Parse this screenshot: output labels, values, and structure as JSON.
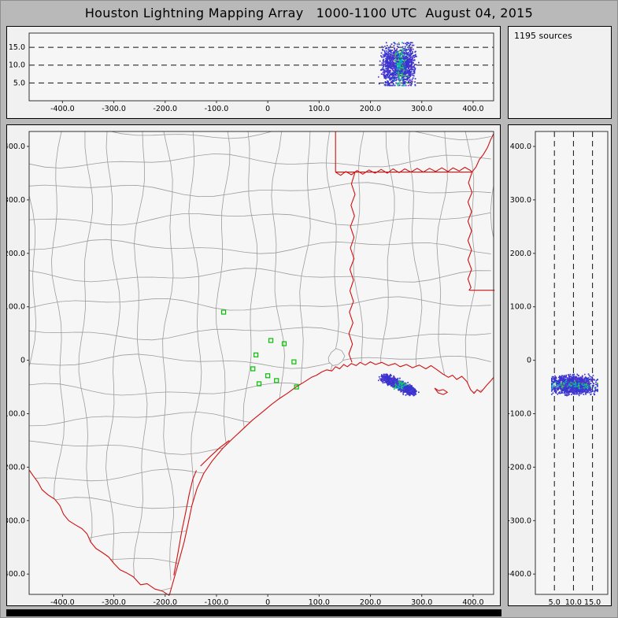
{
  "header": {
    "title": "Houston Lightning Mapping Array   1000-1100 UTC  August 04, 2015"
  },
  "info_panel": {
    "sources": "1195 sources"
  },
  "colors": {
    "frame_bg": "#b9b9b9",
    "panel_bg": "#f1f1f1",
    "plot_bg": "#f6f6f6",
    "frame_line": "#333333",
    "grid_dash": "#111111",
    "county_line": "#9c9c9c",
    "state_line": "#d01010",
    "station": "#00c000",
    "point_blue": "#3535cf",
    "point_purple": "#6a35cf",
    "point_cyan": "#00b4c8",
    "point_green": "#2fbf4f"
  },
  "chart_data": {
    "type": "scatter",
    "title": "Houston Lightning Mapping Array",
    "time_window": "1000-1100 UTC  August 04, 2015",
    "source_count": 1195,
    "linked_views": [
      "altitude_vs_east_west",
      "plan_view_map",
      "altitude_vs_north_south"
    ],
    "axes": {
      "ew_km": {
        "range": [
          -465,
          440
        ],
        "ticks": [
          -400,
          -300,
          -200,
          -100,
          0,
          100,
          200,
          300,
          400
        ],
        "tick_labels": [
          "-400.0",
          "-300.0",
          "-200.0",
          "-100.0",
          "0",
          "100.0",
          "200.0",
          "300.0",
          "400.0"
        ]
      },
      "ns_km": {
        "range": [
          -438,
          428
        ],
        "ticks": [
          400,
          300,
          200,
          100,
          0,
          -100,
          -200,
          -300,
          -400
        ],
        "tick_labels": [
          "400.0",
          "300.0",
          "200.0",
          "100.0",
          "0",
          "-100.0",
          "-200.0",
          "-300.0",
          "-400.0"
        ]
      },
      "alt_km": {
        "range": [
          0,
          19
        ],
        "ticks": [
          5,
          10,
          15
        ],
        "tick_labels": [
          "5.0",
          "10.0",
          "15.0"
        ],
        "gridline_style": "dashed"
      }
    },
    "lightning_cluster": {
      "count": 1195,
      "description": "single storm cell offshore, southeast of Houston network",
      "ew_km_extent": [
        222,
        290
      ],
      "ns_km_extent": [
        -66,
        -26
      ],
      "alt_km_extent": [
        4.3,
        16.3
      ],
      "alt_km_mean": 10.2,
      "track": {
        "start": [
          228,
          -32
        ],
        "end": [
          283,
          -60
        ]
      },
      "spread_ew_km": 9,
      "spread_ns_km": 6,
      "alt_spread_km": 4.6
    },
    "stations": {
      "marker": "open-square",
      "positions_km": [
        [
          -86,
          90
        ],
        [
          6,
          37
        ],
        [
          32,
          31
        ],
        [
          -23,
          10
        ],
        [
          -29,
          -16
        ],
        [
          51,
          -3
        ],
        [
          0,
          -29
        ],
        [
          17,
          -38
        ],
        [
          -17,
          -44
        ],
        [
          56,
          -50
        ]
      ]
    },
    "map": {
      "coastline": [
        [
          -192,
          -440
        ],
        [
          -183,
          -410
        ],
        [
          -172,
          -372
        ],
        [
          -163,
          -340
        ],
        [
          -155,
          -305
        ],
        [
          -148,
          -272
        ],
        [
          -138,
          -240
        ],
        [
          -125,
          -212
        ],
        [
          -108,
          -188
        ],
        [
          -88,
          -165
        ],
        [
          -70,
          -148
        ],
        [
          -52,
          -132
        ],
        [
          -30,
          -112
        ],
        [
          -8,
          -95
        ],
        [
          8,
          -82
        ],
        [
          22,
          -72
        ],
        [
          38,
          -62
        ],
        [
          55,
          -50
        ],
        [
          72,
          -40
        ],
        [
          85,
          -32
        ],
        [
          95,
          -28
        ],
        [
          105,
          -22
        ],
        [
          115,
          -18
        ],
        [
          125,
          -20
        ],
        [
          132,
          -12
        ],
        [
          140,
          -16
        ],
        [
          148,
          -8
        ],
        [
          155,
          -12
        ],
        [
          163,
          -6
        ],
        [
          172,
          -10
        ],
        [
          180,
          -4
        ],
        [
          190,
          -9
        ],
        [
          200,
          -3
        ],
        [
          210,
          -8
        ],
        [
          222,
          -4
        ],
        [
          235,
          -10
        ],
        [
          248,
          -6
        ],
        [
          258,
          -12
        ],
        [
          270,
          -8
        ],
        [
          282,
          -14
        ],
        [
          295,
          -9
        ],
        [
          308,
          -16
        ],
        [
          318,
          -10
        ],
        [
          330,
          -18
        ],
        [
          340,
          -25
        ],
        [
          352,
          -32
        ],
        [
          360,
          -28
        ],
        [
          368,
          -36
        ],
        [
          378,
          -30
        ],
        [
          388,
          -40
        ],
        [
          395,
          -55
        ],
        [
          402,
          -62
        ],
        [
          408,
          -55
        ],
        [
          415,
          -60
        ],
        [
          422,
          -52
        ],
        [
          428,
          -45
        ],
        [
          435,
          -38
        ],
        [
          440,
          -32
        ]
      ],
      "rio_grande": [
        [
          -192,
          -440
        ],
        [
          -205,
          -432
        ],
        [
          -220,
          -428
        ],
        [
          -235,
          -418
        ],
        [
          -248,
          -420
        ],
        [
          -262,
          -405
        ],
        [
          -275,
          -398
        ],
        [
          -288,
          -392
        ],
        [
          -300,
          -380
        ],
        [
          -310,
          -368
        ],
        [
          -322,
          -360
        ],
        [
          -335,
          -352
        ],
        [
          -345,
          -340
        ],
        [
          -352,
          -325
        ],
        [
          -362,
          -315
        ],
        [
          -375,
          -308
        ],
        [
          -388,
          -300
        ],
        [
          -398,
          -288
        ],
        [
          -405,
          -272
        ],
        [
          -415,
          -260
        ],
        [
          -428,
          -252
        ],
        [
          -440,
          -242
        ],
        [
          -448,
          -228
        ],
        [
          -458,
          -215
        ],
        [
          -465,
          -205
        ]
      ],
      "barrier_islands": [
        [
          [
            -183,
            -402
          ],
          [
            -175,
            -360
          ],
          [
            -168,
            -322
          ],
          [
            -160,
            -285
          ],
          [
            -153,
            -250
          ],
          [
            -146,
            -222
          ],
          [
            -139,
            -206
          ]
        ],
        [
          [
            -131,
            -198
          ],
          [
            -112,
            -180
          ],
          [
            -93,
            -163
          ],
          [
            -75,
            -150
          ]
        ]
      ],
      "state_lines": [
        [
          [
            132,
            428
          ],
          [
            132,
            352
          ]
        ],
        [
          [
            132,
            352
          ],
          [
            398,
            352
          ]
        ],
        [
          [
            132,
            352
          ],
          [
            142,
            346
          ],
          [
            152,
            353
          ],
          [
            163,
            347
          ],
          [
            174,
            355
          ],
          [
            185,
            348
          ],
          [
            197,
            356
          ],
          [
            209,
            350
          ],
          [
            221,
            357
          ],
          [
            233,
            350
          ],
          [
            244,
            358
          ],
          [
            256,
            351
          ],
          [
            267,
            358
          ],
          [
            279,
            352
          ],
          [
            291,
            359
          ],
          [
            303,
            352
          ],
          [
            315,
            359
          ],
          [
            327,
            353
          ],
          [
            339,
            360
          ],
          [
            351,
            353
          ],
          [
            361,
            360
          ],
          [
            373,
            354
          ],
          [
            384,
            361
          ],
          [
            395,
            355
          ],
          [
            398,
            352
          ]
        ],
        [
          [
            398,
            352
          ],
          [
            391,
            332
          ],
          [
            398,
            314
          ],
          [
            390,
            296
          ],
          [
            397,
            278
          ],
          [
            390,
            260
          ],
          [
            397,
            242
          ],
          [
            390,
            224
          ],
          [
            397,
            206
          ],
          [
            390,
            188
          ],
          [
            397,
            170
          ],
          [
            390,
            152
          ],
          [
            396,
            136
          ],
          [
            392,
            131
          ]
        ],
        [
          [
            392,
            131
          ],
          [
            442,
            131
          ]
        ],
        [
          [
            398,
            352
          ],
          [
            406,
            362
          ],
          [
            412,
            375
          ],
          [
            420,
            385
          ],
          [
            428,
            398
          ],
          [
            434,
            412
          ],
          [
            440,
            424
          ]
        ],
        [
          [
            170,
            352
          ],
          [
            163,
            330
          ],
          [
            170,
            310
          ],
          [
            162,
            290
          ],
          [
            169,
            270
          ],
          [
            161,
            250
          ],
          [
            168,
            230
          ],
          [
            161,
            210
          ],
          [
            168,
            190
          ],
          [
            160,
            170
          ],
          [
            167,
            150
          ],
          [
            160,
            130
          ],
          [
            167,
            110
          ],
          [
            159,
            90
          ],
          [
            166,
            70
          ],
          [
            158,
            50
          ],
          [
            165,
            30
          ],
          [
            158,
            12
          ],
          [
            164,
            -4
          ]
        ],
        [
          [
            325,
            -52
          ],
          [
            333,
            -57
          ],
          [
            342,
            -55
          ],
          [
            350,
            -60
          ],
          [
            342,
            -64
          ],
          [
            332,
            -61
          ],
          [
            325,
            -52
          ]
        ]
      ],
      "galveston_bay": [
        [
          118,
          5
        ],
        [
          124,
          15
        ],
        [
          133,
          22
        ],
        [
          144,
          18
        ],
        [
          150,
          8
        ],
        [
          145,
          -2
        ],
        [
          137,
          -8
        ],
        [
          127,
          -10
        ],
        [
          119,
          -3
        ],
        [
          118,
          5
        ]
      ]
    }
  }
}
